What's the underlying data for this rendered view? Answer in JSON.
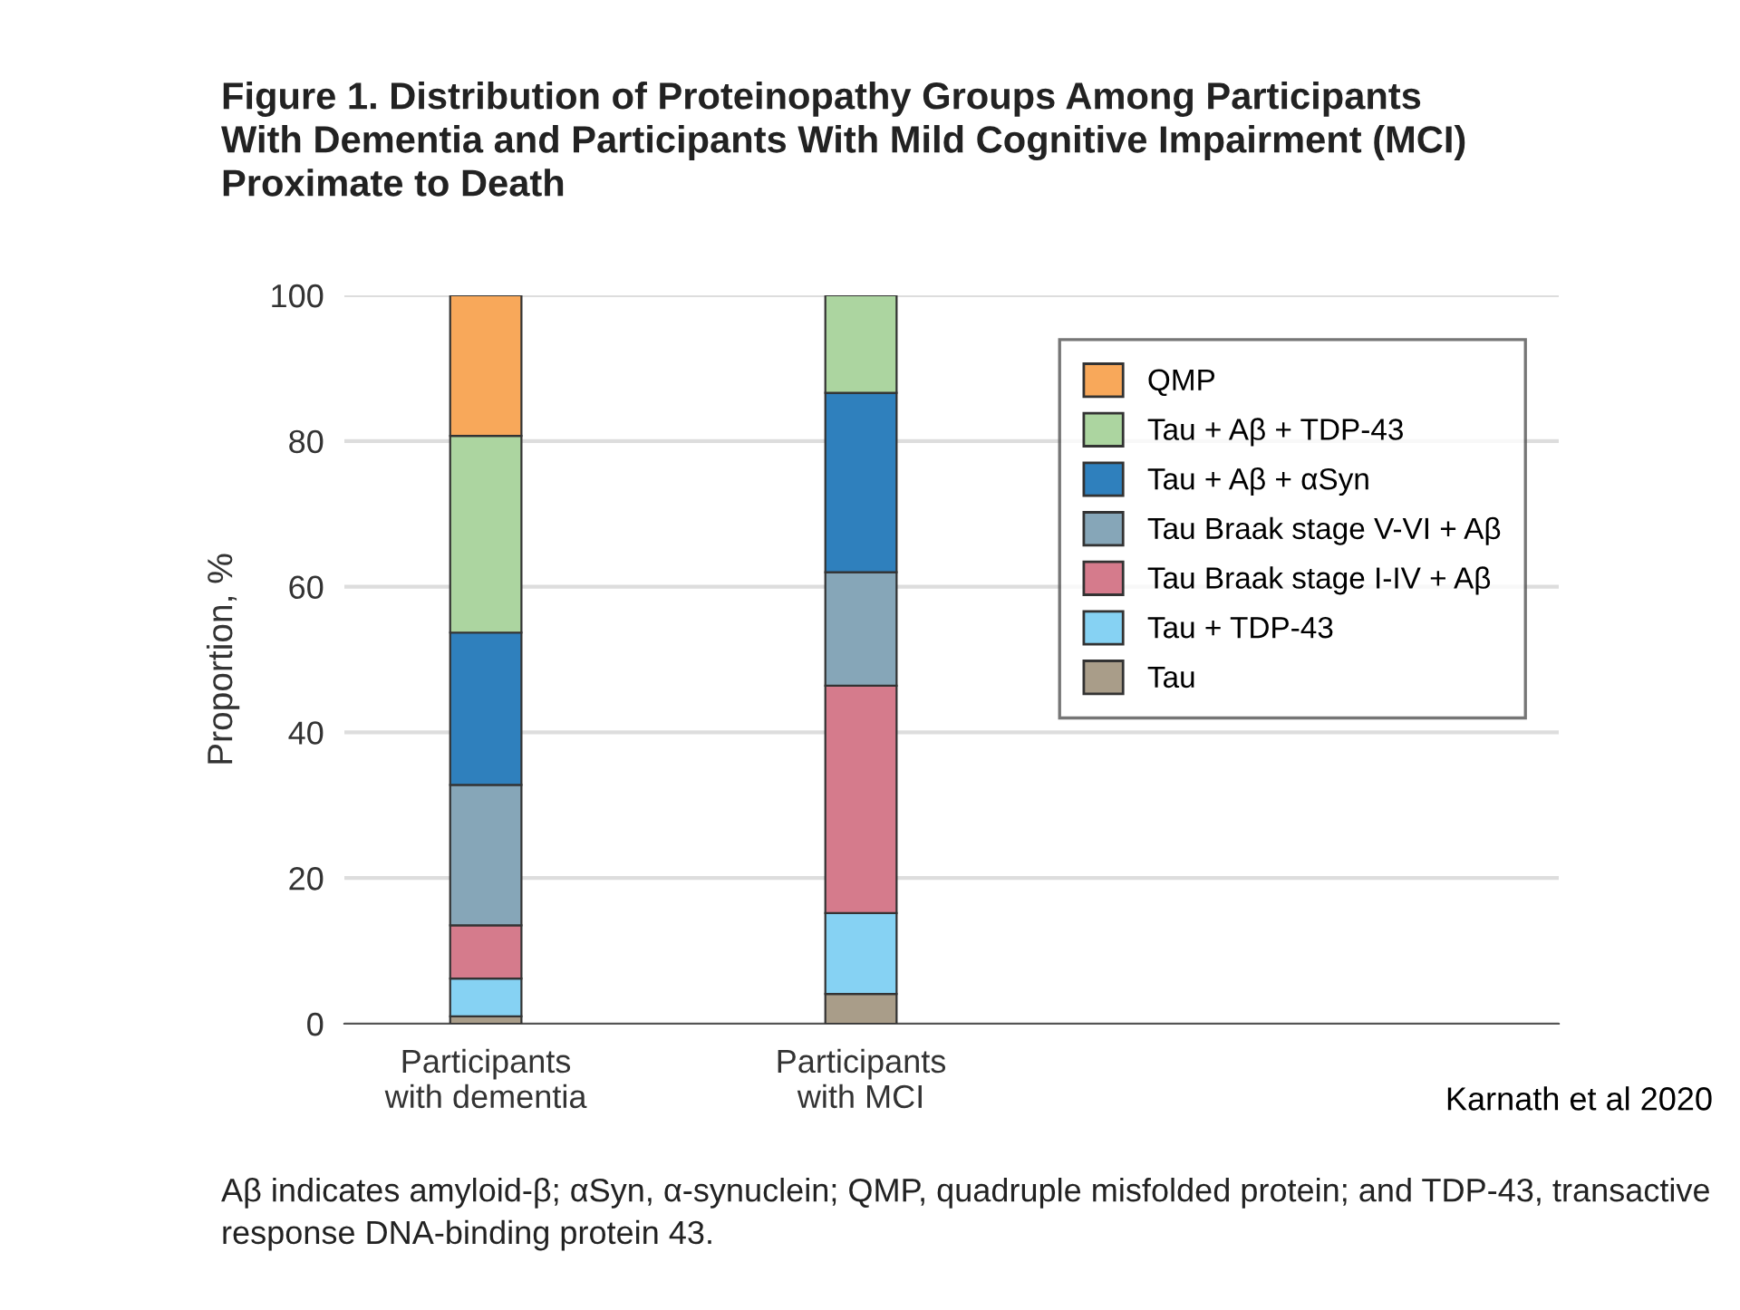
{
  "chart_data": {
    "type": "bar",
    "stacked": true,
    "title": "Figure 1. Distribution of Proteinopathy Groups Among Participants\nWith Dementia and Participants With Mild Cognitive Impairment (MCI)\nProximate to Death",
    "ylabel": "Proportion, %",
    "categories": [
      "Participants\nwith dementia",
      "Participants\nwith MCI"
    ],
    "series": [
      {
        "name": "Tau",
        "color": "#a99d89",
        "values": [
          1.0,
          4.1
        ]
      },
      {
        "name": "Tau + TDP-43",
        "color": "#86d2f3",
        "values": [
          5.2,
          11.1
        ]
      },
      {
        "name": "Tau Braak stage I-IV + Aβ",
        "color": "#d57b8c",
        "values": [
          7.3,
          31.2
        ]
      },
      {
        "name": "Tau Braak stage V-VI + Aβ",
        "color": "#86a6b8",
        "values": [
          19.3,
          15.6
        ]
      },
      {
        "name": "Tau + Aβ + αSyn",
        "color": "#2f80bd",
        "values": [
          20.9,
          24.6
        ]
      },
      {
        "name": "Tau + Aβ + TDP-43",
        "color": "#acd5a0",
        "values": [
          27.0,
          13.4
        ]
      },
      {
        "name": "QMP",
        "color": "#f8a85a",
        "values": [
          19.3,
          0
        ]
      }
    ],
    "ylim": [
      0,
      100
    ],
    "yticks": [
      0,
      20,
      40,
      60,
      80,
      100
    ],
    "grid": "y",
    "legend": "top right",
    "annotations": [
      "Karnath et al 2020",
      "Aβ indicates amyloid-β; αSyn, α-synuclein; QMP, quadruple misfolded protein; and TDP-43, transactive response DNA-binding protein 43."
    ]
  }
}
